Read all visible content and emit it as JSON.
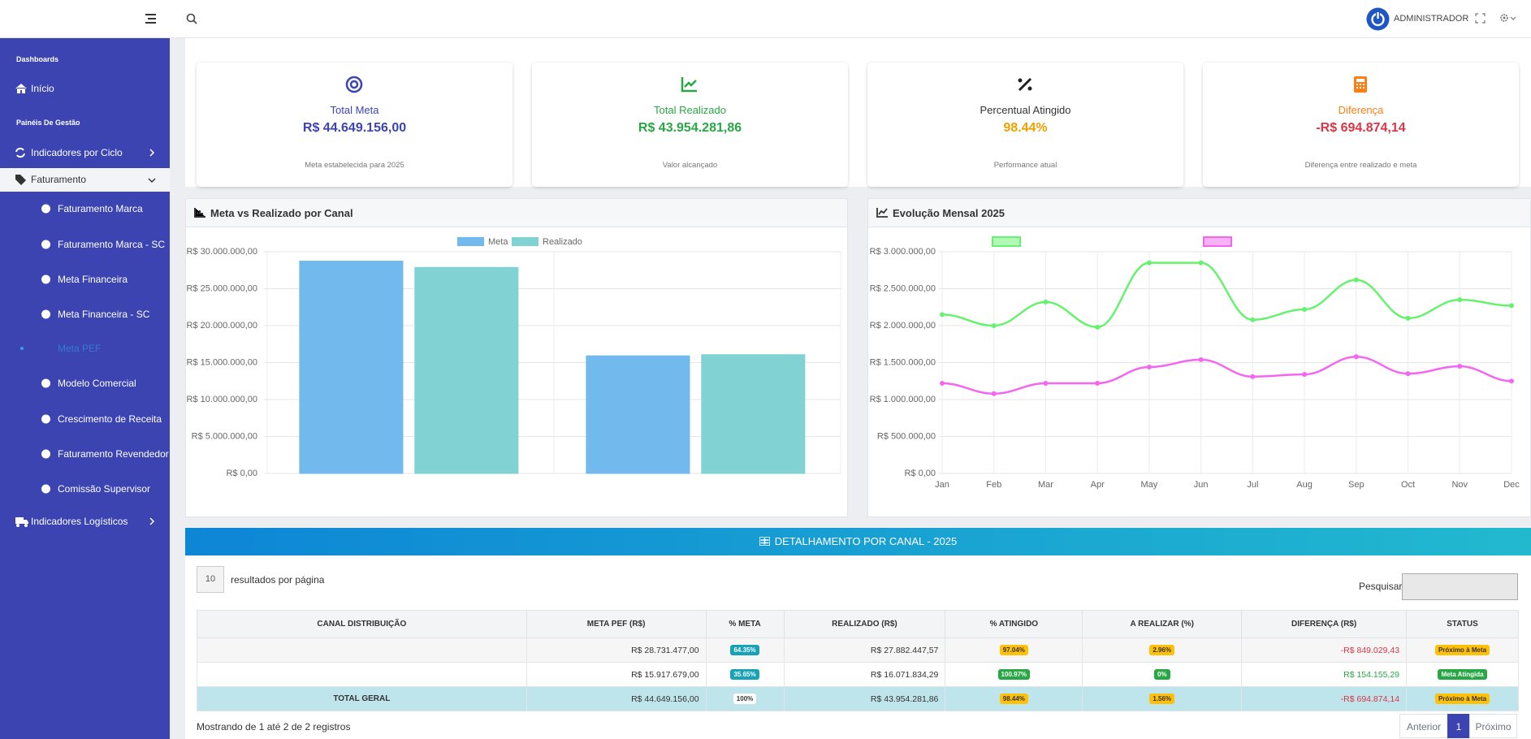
{
  "header": {
    "user": "ADMINISTRADOR"
  },
  "sidebar": {
    "dashboards": "Dashboards",
    "inicio": "Início",
    "paineis": "Painéis De Gestão",
    "ciclo": "Indicadores por Ciclo",
    "faturamento": "Faturamento",
    "submenu": [
      "Faturamento Marca",
      "Faturamento Marca - SC",
      "Meta Financeira",
      "Meta Financeira - SC",
      "Meta PEF",
      "Modelo Comercial",
      "Crescimento de Receita",
      "Faturamento Revendedor",
      "Comissão Supervisor"
    ],
    "logisticos": "Indicadores Logísticos"
  },
  "cards": [
    {
      "title": "Total Meta",
      "value": "R$ 44.649.156,00",
      "note": "Meta estabelecida para 2025"
    },
    {
      "title": "Total Realizado",
      "value": "R$ 43.954.281,86",
      "note": "Valor alcançado"
    },
    {
      "title": "Percentual Atingido",
      "value": "98.44%",
      "note": "Performance atual"
    },
    {
      "title": "Diferença",
      "value": "-R$ 694.874,14",
      "note": "Diferença entre realizado e meta"
    }
  ],
  "chart_data": [
    {
      "type": "bar",
      "title": "Meta vs Realizado por Canal",
      "categories": [
        null,
        null
      ],
      "series": [
        {
          "name": "Meta",
          "color": "#72b9ee",
          "values": [
            28731477,
            15917679
          ]
        },
        {
          "name": "Realizado",
          "color": "#80d3d2",
          "values": [
            27882447.57,
            16071834.29
          ]
        }
      ],
      "ylim": [
        0,
        30000000
      ],
      "yticks": [
        {
          "value": 0,
          "label": "R$ 0,00"
        },
        {
          "value": 5000000,
          "label": "R$ 5.000.000,00"
        },
        {
          "value": 10000000,
          "label": "R$ 10.000.000,00"
        },
        {
          "value": 15000000,
          "label": "R$ 15.000.000,00"
        },
        {
          "value": 20000000,
          "label": "R$ 20.000.000,00"
        },
        {
          "value": 25000000,
          "label": "R$ 25.000.000,00"
        },
        {
          "value": 30000000,
          "label": "R$ 30.000.000,00"
        }
      ],
      "grid": true,
      "legend": "top"
    },
    {
      "type": "line",
      "title": "Evolução Mensal 2025",
      "categories": [
        "Jan",
        "Feb",
        "Mar",
        "Apr",
        "May",
        "Jun",
        "Jul",
        "Aug",
        "Sep",
        "Oct",
        "Nov",
        "Dec"
      ],
      "series": [
        {
          "color": "#66f26e",
          "values": [
            2150000,
            2000000,
            2320000,
            1980000,
            2850000,
            2850000,
            2080000,
            2220000,
            2620000,
            2100000,
            2350000,
            2270000
          ]
        },
        {
          "color": "#f566f0",
          "values": [
            1220000,
            1080000,
            1220000,
            1220000,
            1440000,
            1540000,
            1310000,
            1340000,
            1580000,
            1350000,
            1450000,
            1250000
          ]
        }
      ],
      "ylim": [
        0,
        3000000
      ],
      "yticks": [
        {
          "value": 0,
          "label": "R$ 0,00"
        },
        {
          "value": 500000,
          "label": "R$ 500.000,00"
        },
        {
          "value": 1000000,
          "label": "R$ 1.000.000,00"
        },
        {
          "value": 1500000,
          "label": "R$ 1.500.000,00"
        },
        {
          "value": 2000000,
          "label": "R$ 2.000.000,00"
        },
        {
          "value": 2500000,
          "label": "R$ 2.500.000,00"
        },
        {
          "value": 3000000,
          "label": "R$ 3.000.000,00"
        }
      ],
      "grid": true,
      "legend": "top"
    }
  ],
  "table": {
    "title": "DETALHAMENTO POR CANAL - 2025",
    "page_size": "10",
    "page_size_label": "resultados por página",
    "search_label": "Pesquisar",
    "columns": [
      "CANAL DISTRIBUIÇÃO",
      "META PEF (R$)",
      "% META",
      "REALIZADO (R$)",
      "% ATINGIDO",
      "A REALIZAR (%)",
      "DIFERENÇA (R$)",
      "STATUS"
    ],
    "rows": [
      [
        null,
        "R$ 28.731.477,00",
        "64.35%",
        "R$ 27.882.447,57",
        "97.04%",
        "2.96%",
        "-R$ 849.029,43",
        "Próximo à Meta"
      ],
      [
        null,
        "R$ 15.917.679,00",
        "35.65%",
        "R$ 16.071.834,29",
        "100.97%",
        "0%",
        "R$ 154.155,29",
        "Meta Atingida"
      ],
      [
        "TOTAL GERAL",
        "R$ 44.649.156,00",
        "100%",
        "R$ 43.954.281,86",
        "98.44%",
        "1.56%",
        "-R$ 694.874,14",
        "Próximo à Meta"
      ]
    ],
    "info": "Mostrando de 1 até 2 de 2 registros",
    "prev": "Anterior",
    "page": "1",
    "next": "Próximo"
  }
}
